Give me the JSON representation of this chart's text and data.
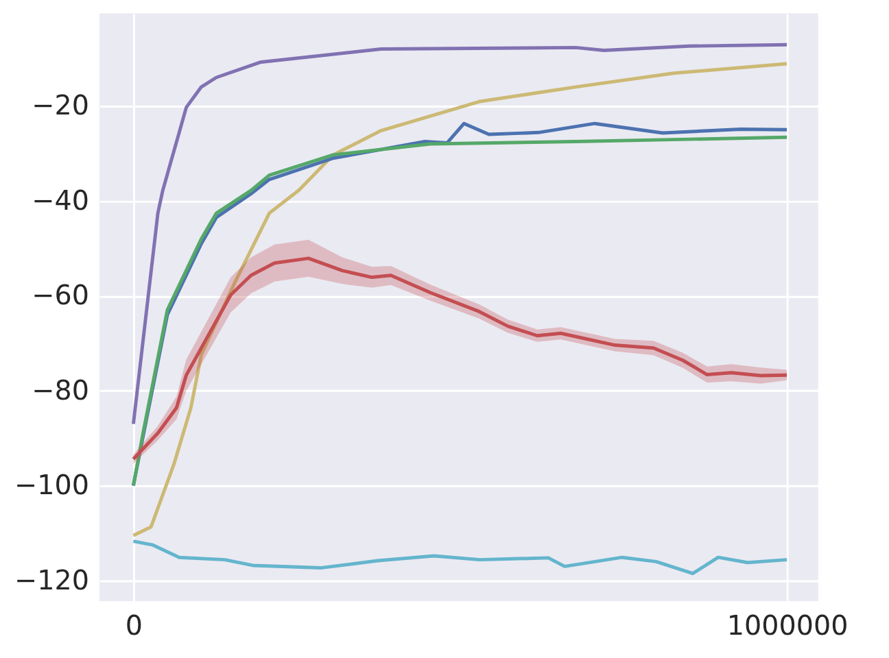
{
  "chart_data": {
    "type": "line",
    "xlim": [
      -52000,
      1048000
    ],
    "ylim": [
      -124.3,
      -0.5
    ],
    "xticks": [
      0,
      1000000
    ],
    "yticks": [
      -120,
      -100,
      -80,
      -60,
      -40,
      -20
    ],
    "grid": true,
    "line_style": "solid",
    "marker": "none",
    "series": [
      {
        "color": "#8172b2",
        "x": [
          0,
          37500,
          45000,
          81000,
          104000,
          127000,
          194000,
          379000,
          600000,
          677000,
          720000,
          850000,
          1000000
        ],
        "values": [
          -87,
          -42.6,
          -37.8,
          -20.3,
          -16,
          -14,
          -10.8,
          -8,
          -7.8,
          -7.7,
          -8.3,
          -7.4,
          -7.1
        ]
      },
      {
        "color": "#ccb974",
        "x": [
          0,
          27000,
          62000,
          88000,
          104000,
          156000,
          208000,
          253000,
          306000,
          379000,
          529000,
          677000,
          827000,
          1000000
        ],
        "values": [
          -110.5,
          -108.7,
          -95.5,
          -83.6,
          -72.4,
          -57,
          -42.6,
          -37.8,
          -30.3,
          -25.2,
          -19.1,
          -16,
          -13.1,
          -11.1
        ]
      },
      {
        "color": "#4c72b0",
        "x": [
          0,
          15000,
          52000,
          104000,
          127000,
          180000,
          208000,
          306000,
          446000,
          480000,
          506000,
          544000,
          620000,
          706000,
          810000,
          930000,
          1000000
        ],
        "values": [
          -100,
          -89.5,
          -64,
          -49,
          -43.5,
          -38.5,
          -35.5,
          -31,
          -27.5,
          -27.8,
          -23.7,
          -26,
          -25.6,
          -23.7,
          -25.7,
          -24.9,
          -25
        ]
      },
      {
        "color": "#55a868",
        "x": [
          0,
          15000,
          52000,
          104000,
          127000,
          180000,
          208000,
          306000,
          454000,
          677000,
          1000000
        ],
        "values": [
          -100,
          -88.8,
          -63,
          -48,
          -42.6,
          -37.8,
          -34.6,
          -30.3,
          -28,
          -27.5,
          -26.6
        ]
      },
      {
        "color": "#c44e52",
        "x": [
          0,
          37000,
          66000,
          81000,
          149000,
          180000,
          216000,
          268000,
          320000,
          365000,
          394000,
          454000,
          529000,
          573000,
          618000,
          654000,
          737000,
          796000,
          841000,
          878000,
          915000,
          960000,
          1000000
        ],
        "values": [
          -94.4,
          -89,
          -83.6,
          -76.7,
          -59.8,
          -55.7,
          -53.1,
          -52.1,
          -54.7,
          -56.1,
          -55.7,
          -59.3,
          -63.3,
          -66.4,
          -68.4,
          -67.9,
          -70.4,
          -71,
          -73.6,
          -76.6,
          -76.2,
          -76.8,
          -76.7
        ],
        "lower": [
          -95.4,
          -90.5,
          -86,
          -80,
          -63.5,
          -59.5,
          -57,
          -56,
          -57.5,
          -58.3,
          -57.7,
          -61,
          -64.8,
          -67.8,
          -69.7,
          -69.2,
          -71.7,
          -72.5,
          -75.2,
          -78.3,
          -78,
          -78.5,
          -77.8
        ],
        "upper": [
          -93.4,
          -87.5,
          -81.2,
          -73.4,
          -56.1,
          -51.9,
          -49.2,
          -48.2,
          -51.9,
          -53.9,
          -53.7,
          -57.6,
          -61.8,
          -65,
          -67.1,
          -66.6,
          -69.1,
          -69.5,
          -72,
          -74.9,
          -74.4,
          -75.1,
          -75.6
        ]
      },
      {
        "color": "#64b5cd",
        "x": [
          0,
          30000,
          70000,
          140000,
          183000,
          288000,
          374000,
          460000,
          530000,
          635000,
          660000,
          748000,
          800000,
          856000,
          895000,
          940000,
          1000000
        ],
        "values": [
          -111.7,
          -112.5,
          -115.1,
          -115.6,
          -116.8,
          -117.3,
          -115.8,
          -114.8,
          -115.6,
          -115.2,
          -117,
          -115.1,
          -116,
          -118.5,
          -115.1,
          -116.2,
          -115.6
        ]
      }
    ]
  }
}
